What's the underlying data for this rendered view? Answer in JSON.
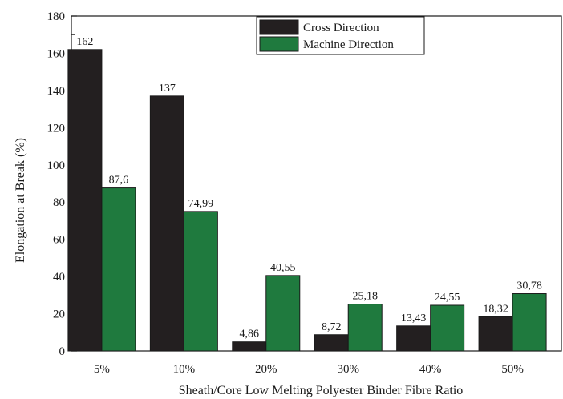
{
  "chart_data": {
    "type": "bar",
    "title": "",
    "xlabel": "Sheath/Core Low Melting Polyester Binder Fibre Ratio",
    "ylabel": "Elongation at Break (%)",
    "ylim": [
      0,
      180
    ],
    "yticks": [
      0,
      20,
      40,
      60,
      80,
      100,
      120,
      140,
      160,
      180
    ],
    "categories": [
      "5%",
      "10%",
      "20%",
      "30%",
      "40%",
      "50%"
    ],
    "series": [
      {
        "name": "Cross Direction",
        "color": "#231f20",
        "values": [
          162,
          137,
          4.86,
          8.72,
          13.43,
          18.32
        ],
        "labels": [
          "162",
          "137",
          "4,86",
          "8,72",
          "13,43",
          "18,32"
        ]
      },
      {
        "name": "Machine Direction",
        "color": "#1f7a3e",
        "values": [
          87.6,
          74.99,
          40.55,
          25.18,
          24.55,
          30.78
        ],
        "labels": [
          "87,6",
          "74,99",
          "40,55",
          "25,18",
          "24,55",
          "30,78"
        ]
      }
    ],
    "legend_position": "top-right",
    "grid": false
  }
}
